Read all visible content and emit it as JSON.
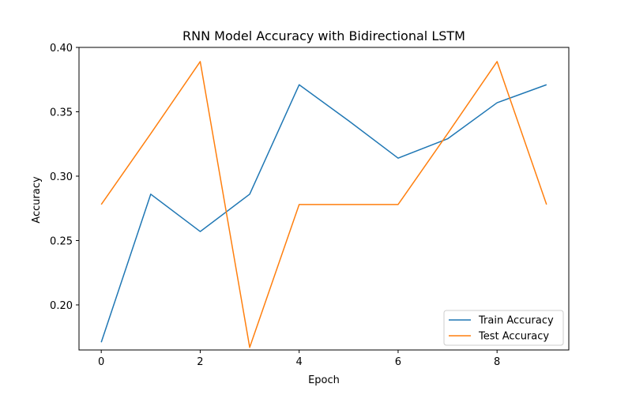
{
  "chart_data": {
    "type": "line",
    "title": "RNN Model Accuracy with Bidirectional LSTM",
    "xlabel": "Epoch",
    "ylabel": "Accuracy",
    "x": [
      0,
      1,
      2,
      3,
      4,
      5,
      6,
      7,
      8,
      9
    ],
    "xlim": [
      -0.45,
      9.45
    ],
    "ylim": [
      0.165,
      0.4
    ],
    "xticks": [
      0,
      2,
      4,
      6,
      8
    ],
    "yticks": [
      0.2,
      0.25,
      0.3,
      0.35,
      0.4
    ],
    "ytick_labels": [
      "0.20",
      "0.25",
      "0.30",
      "0.35",
      "0.40"
    ],
    "grid": false,
    "legend_position": "lower-right",
    "series": [
      {
        "name": "Train Accuracy",
        "color": "#1f77b4",
        "values": [
          0.171,
          0.286,
          0.257,
          0.286,
          0.371,
          0.343,
          0.314,
          0.329,
          0.357,
          0.371
        ]
      },
      {
        "name": "Test Accuracy",
        "color": "#ff7f0e",
        "values": [
          0.278,
          0.333,
          0.389,
          0.167,
          0.278,
          0.278,
          0.278,
          0.333,
          0.389,
          0.278
        ]
      }
    ]
  }
}
